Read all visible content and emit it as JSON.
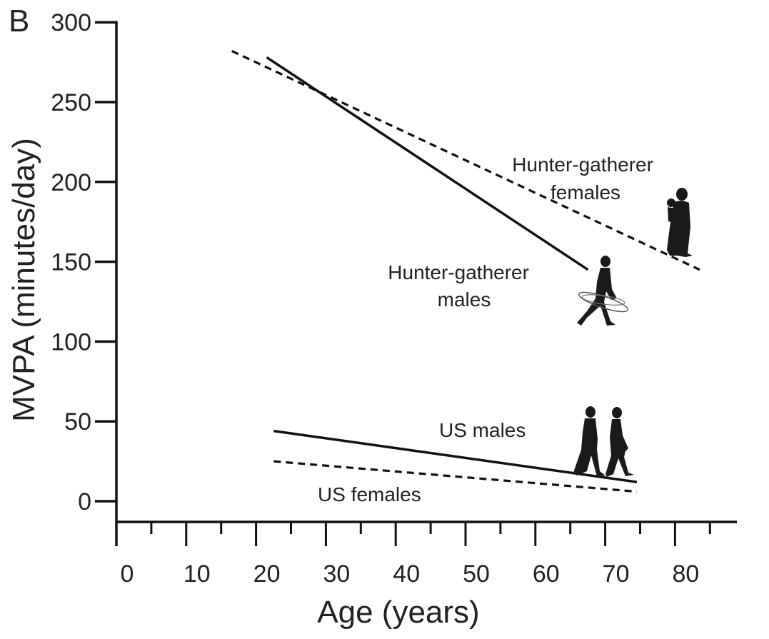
{
  "panel_label": "B",
  "chart_data": {
    "type": "line",
    "xlabel": "Age (years)",
    "ylabel": "MVPA (minutes/day)",
    "xlim": [
      0,
      88
    ],
    "ylim": [
      0,
      300
    ],
    "xticks": [
      0,
      10,
      20,
      30,
      40,
      50,
      60,
      70,
      80
    ],
    "yticks": [
      0,
      50,
      100,
      150,
      200,
      250,
      300
    ],
    "series": [
      {
        "name": "Hunter-gatherer males",
        "style": "solid",
        "x": [
          20,
          66
        ],
        "y": [
          278,
          145
        ]
      },
      {
        "name": "Hunter-gatherer females",
        "style": "dashed",
        "x": [
          15,
          82
        ],
        "y": [
          282,
          145
        ]
      },
      {
        "name": "US males",
        "style": "solid",
        "x": [
          21,
          73
        ],
        "y": [
          44,
          12
        ]
      },
      {
        "name": "US females",
        "style": "dashed",
        "x": [
          21,
          73
        ],
        "y": [
          25,
          6
        ]
      }
    ],
    "annotations": [
      {
        "lines": [
          "Hunter-gatherer",
          "females"
        ]
      },
      {
        "lines": [
          "Hunter-gatherer",
          "males"
        ]
      },
      {
        "lines": [
          "US males"
        ]
      },
      {
        "lines": [
          "US females"
        ]
      }
    ],
    "grid": false,
    "legend": "none",
    "colors": {
      "line": "#111111",
      "axis": "#111111",
      "text": "#222222"
    }
  }
}
